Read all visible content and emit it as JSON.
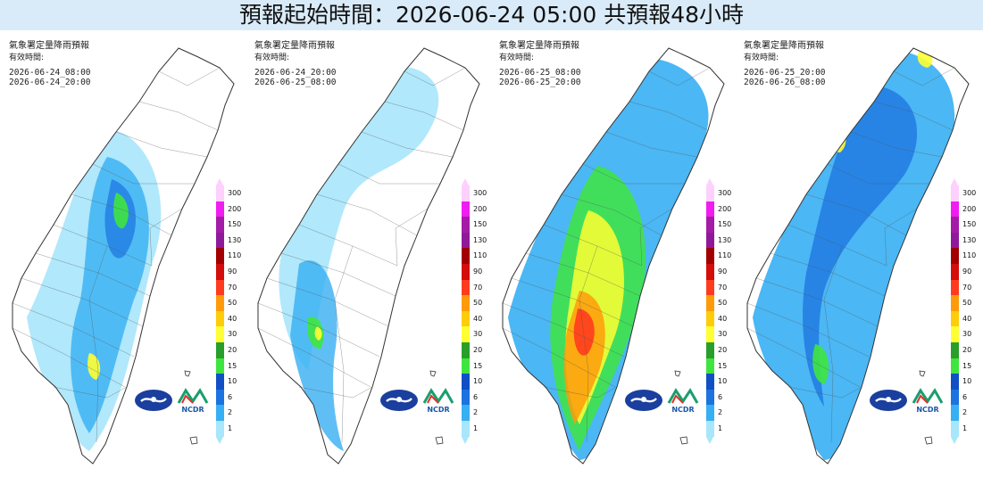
{
  "header": {
    "title": "預報起始時間：2026-06-24 05:00  共預報48小時"
  },
  "panel_title": "氣象署定量降雨預報",
  "valid_label": "有效時間:",
  "panels": [
    {
      "start": "2026-06-24_08:00",
      "end": "2026-06-24_20:00"
    },
    {
      "start": "2026-06-24_20:00",
      "end": "2026-06-25_08:00"
    },
    {
      "start": "2026-06-25_08:00",
      "end": "2026-06-25_20:00"
    },
    {
      "start": "2026-06-25_20:00",
      "end": "2026-06-26_08:00"
    }
  ],
  "legend": {
    "levels": [
      "300",
      "200",
      "150",
      "130",
      "110",
      "90",
      "70",
      "50",
      "40",
      "30",
      "20",
      "15",
      "10",
      "6",
      "2",
      "1"
    ],
    "colors": [
      "#fdd0fd",
      "#f01df0",
      "#a41ba7",
      "#8e1a9a",
      "#a20000",
      "#d30c0c",
      "#ff3b1e",
      "#ff9b0a",
      "#ffcc0a",
      "#ffff33",
      "#2a9e2a",
      "#3fe53f",
      "#1150c4",
      "#1b73e0",
      "#37aff3",
      "#a8e6fb"
    ]
  },
  "logos": {
    "ncdr_text": "NCDR"
  }
}
